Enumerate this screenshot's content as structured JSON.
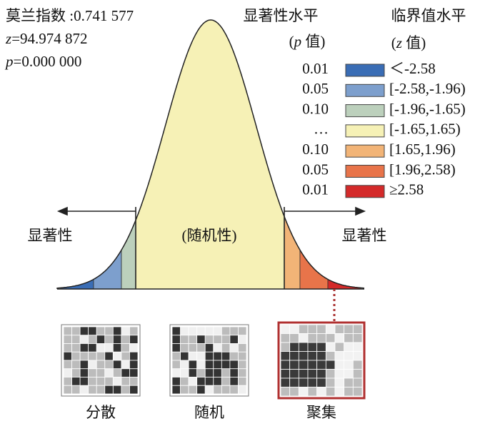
{
  "stats": {
    "moran": "莫兰指数 :0.741 577",
    "z": {
      "symbol": "z",
      "value": "=94.974 872"
    },
    "p": {
      "symbol": "p",
      "value": "=0.000 000"
    }
  },
  "legend": {
    "p_header": "显著性水平",
    "p_sub": {
      "open": "(",
      "symbol": "p",
      "rest": " 值)"
    },
    "z_header": "临界值水平",
    "z_sub": {
      "open": "(",
      "symbol": "z",
      "rest": " 值)"
    },
    "items": [
      {
        "p": "0.01",
        "z": "＜-2.58",
        "color": "#3a6db5"
      },
      {
        "p": "0.05",
        "z": "[-2.58,-1.96)",
        "color": "#7d9fcd"
      },
      {
        "p": "0.10",
        "z": "[-1.96,-1.65)",
        "color": "#bcd0bc"
      },
      {
        "p": "…",
        "z": "[-1.65,1.65)",
        "color": "#f6f1b6"
      },
      {
        "p": "0.10",
        "z": "[1.65,1.96)",
        "color": "#f2b477"
      },
      {
        "p": "0.05",
        "z": "[1.96,2.58)",
        "color": "#e8744a"
      },
      {
        "p": "0.01",
        "z": "≥2.58",
        "color": "#d42a2a"
      }
    ]
  },
  "curve": {
    "left": "显著性",
    "center": "(随机性)",
    "right": "显著性"
  },
  "maps": [
    "分散",
    "随机",
    "聚集"
  ]
}
